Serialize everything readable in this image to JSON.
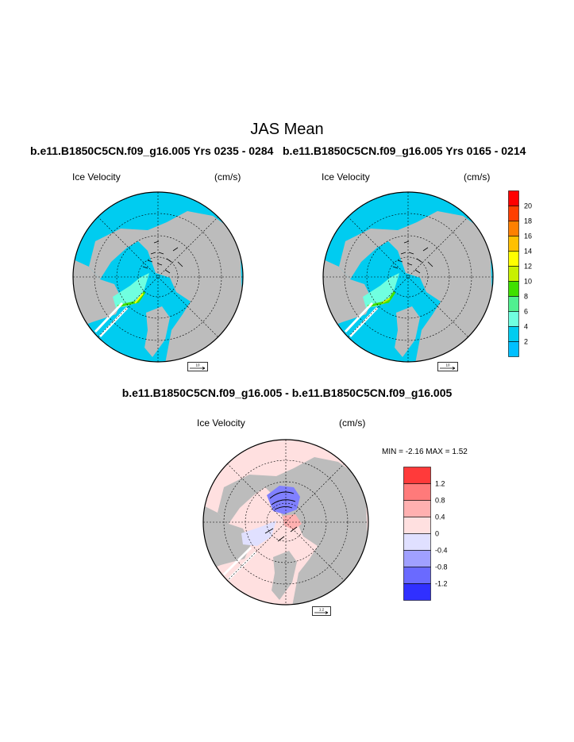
{
  "title": "JAS Mean",
  "panels": [
    {
      "case_title": "b.e11.B1850C5CN.f09_g16.005  Yrs 0235 - 0284",
      "field_label": "Ice Velocity",
      "units": "(cm/s)",
      "ref_vector": "10"
    },
    {
      "case_title": "b.e11.B1850C5CN.f09_g16.005  Yrs 0165 - 0214",
      "field_label": "Ice Velocity",
      "units": "(cm/s)",
      "ref_vector": "10"
    }
  ],
  "speed_colorbar": {
    "labels": [
      "20",
      "18",
      "16",
      "14",
      "12",
      "10",
      "8",
      "6",
      "4",
      "2"
    ],
    "colors": [
      "#ff0000",
      "#ff4000",
      "#ff8000",
      "#ffc000",
      "#ffff00",
      "#c8f000",
      "#40e000",
      "#50f090",
      "#70ffe0",
      "#00ccf0",
      "#00c0ff"
    ]
  },
  "difference": {
    "title": "b.e11.B1850C5CN.f09_g16.005 - b.e11.B1850C5CN.f09_g16.005",
    "field_label": "Ice Velocity",
    "units": "(cm/s)",
    "min_max": "MIN =  -2.16 MAX =   1.52",
    "ref_vector": "1.2",
    "colorbar": {
      "labels": [
        "1.2",
        "0.8",
        "0.4",
        "0",
        "-0.4",
        "-0.8",
        "-1.2"
      ],
      "colors": [
        "#ff3a3a",
        "#ff7a7a",
        "#ffb0b0",
        "#ffe0e0",
        "#e0e0ff",
        "#a0a0ff",
        "#6a6aff",
        "#3030ff"
      ]
    }
  },
  "colors": {
    "ocean": "#00ccf0",
    "land": "#bcbcbc",
    "diff_ocean": "#ffe0e0"
  }
}
